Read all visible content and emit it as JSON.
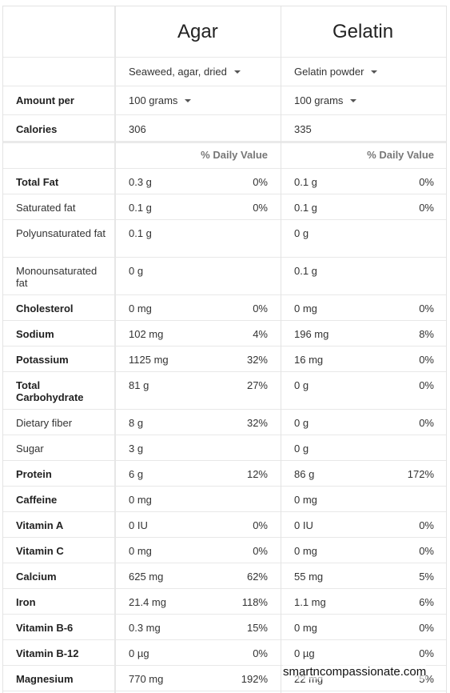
{
  "foods": [
    {
      "name": "Agar",
      "variety": "Seaweed, agar, dried",
      "amount": "100 grams",
      "calories": "306"
    },
    {
      "name": "Gelatin",
      "variety": "Gelatin powder",
      "amount": "100 grams",
      "calories": "335"
    }
  ],
  "labels": {
    "amount_per": "Amount per",
    "calories": "Calories",
    "daily_value": "% Daily Value"
  },
  "nutrients": [
    {
      "name": "Total Fat",
      "bold": true,
      "a": "0.3 g",
      "ap": "0%",
      "g": "0.1 g",
      "gp": "0%"
    },
    {
      "name": "Saturated fat",
      "bold": false,
      "a": "0.1 g",
      "ap": "0%",
      "g": "0.1 g",
      "gp": "0%"
    },
    {
      "name": "Polyunsaturated fat",
      "bold": false,
      "a": "0.1 g",
      "ap": "",
      "g": "0 g",
      "gp": ""
    },
    {
      "name": "Monounsaturated fat",
      "bold": false,
      "a": "0 g",
      "ap": "",
      "g": "0.1 g",
      "gp": ""
    },
    {
      "name": "Cholesterol",
      "bold": true,
      "a": "0 mg",
      "ap": "0%",
      "g": "0 mg",
      "gp": "0%"
    },
    {
      "name": "Sodium",
      "bold": true,
      "a": "102 mg",
      "ap": "4%",
      "g": "196 mg",
      "gp": "8%"
    },
    {
      "name": "Potassium",
      "bold": true,
      "a": "1125 mg",
      "ap": "32%",
      "g": "16 mg",
      "gp": "0%"
    },
    {
      "name": "Total Carbohydrate",
      "bold": true,
      "a": "81 g",
      "ap": "27%",
      "g": "0 g",
      "gp": "0%"
    },
    {
      "name": "Dietary fiber",
      "bold": false,
      "a": "8 g",
      "ap": "32%",
      "g": "0 g",
      "gp": "0%"
    },
    {
      "name": "Sugar",
      "bold": false,
      "a": "3 g",
      "ap": "",
      "g": "0 g",
      "gp": ""
    },
    {
      "name": "Protein",
      "bold": true,
      "a": "6 g",
      "ap": "12%",
      "g": "86 g",
      "gp": "172%"
    },
    {
      "name": "Caffeine",
      "bold": true,
      "a": "0 mg",
      "ap": "",
      "g": "0 mg",
      "gp": ""
    },
    {
      "name": "Vitamin A",
      "bold": true,
      "a": "0 IU",
      "ap": "0%",
      "g": "0 IU",
      "gp": "0%"
    },
    {
      "name": "Vitamin C",
      "bold": true,
      "a": "0 mg",
      "ap": "0%",
      "g": "0 mg",
      "gp": "0%"
    },
    {
      "name": "Calcium",
      "bold": true,
      "a": "625 mg",
      "ap": "62%",
      "g": "55 mg",
      "gp": "5%"
    },
    {
      "name": "Iron",
      "bold": true,
      "a": "21.4 mg",
      "ap": "118%",
      "g": "1.1 mg",
      "gp": "6%"
    },
    {
      "name": "Vitamin B-6",
      "bold": true,
      "a": "0.3 mg",
      "ap": "15%",
      "g": "0 mg",
      "gp": "0%"
    },
    {
      "name": "Vitamin B-12",
      "bold": true,
      "a": "0 µg",
      "ap": "0%",
      "g": "0 µg",
      "gp": "0%"
    },
    {
      "name": "Magnesium",
      "bold": true,
      "a": "770 mg",
      "ap": "192%",
      "g": "22 mg",
      "gp": "5%"
    }
  ],
  "watermark": "smartncompassionate.com"
}
